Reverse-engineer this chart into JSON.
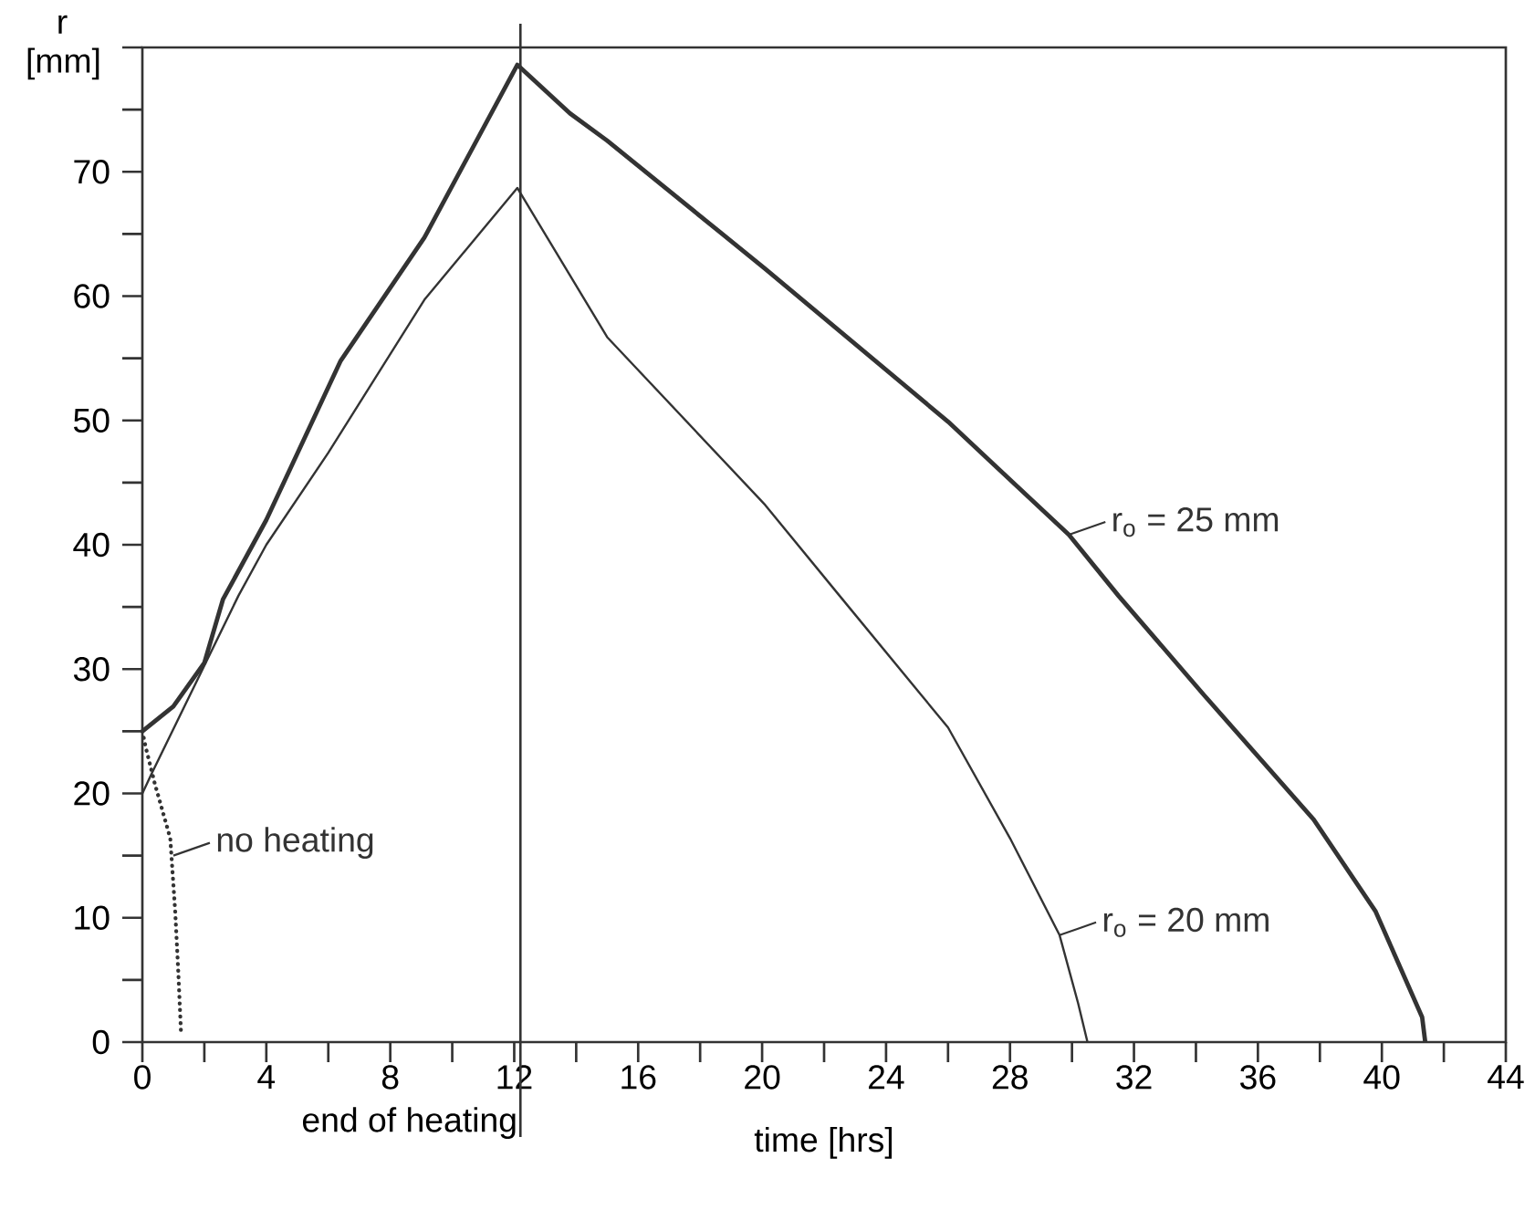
{
  "chart_data": {
    "type": "line",
    "xlabel": "time [hrs]",
    "ylabel": "r [mm]",
    "xlim": [
      0,
      44
    ],
    "ylim": [
      0,
      80
    ],
    "xticks": [
      0,
      {
        "value": 2,
        "label": null
      },
      4,
      {
        "value": 6,
        "label": null
      },
      8,
      {
        "value": 10,
        "label": null
      },
      12,
      {
        "value": 14,
        "label": null
      },
      16,
      {
        "value": 18,
        "label": null
      },
      20,
      {
        "value": 22,
        "label": null
      },
      24,
      {
        "value": 26,
        "label": null
      },
      28,
      {
        "value": 30,
        "label": null
      },
      32,
      {
        "value": 34,
        "label": null
      },
      36,
      {
        "value": 38,
        "label": null
      },
      40,
      {
        "value": 42,
        "label": null
      },
      44
    ],
    "yticks": [
      0,
      {
        "value": 5,
        "label": null
      },
      10,
      {
        "value": 15,
        "label": null
      },
      20,
      {
        "value": 25,
        "label": null
      },
      30,
      {
        "value": 35,
        "label": null
      },
      40,
      {
        "value": 45,
        "label": null
      },
      50,
      {
        "value": 55,
        "label": null
      },
      60,
      {
        "value": 65,
        "label": null
      },
      70,
      {
        "value": 75,
        "label": null
      },
      {
        "value": 80,
        "label": null
      }
    ],
    "series": [
      {
        "color": "#333333",
        "line_style": "solid",
        "x": [
          0,
          1,
          2,
          2.6,
          4,
          6.4,
          9.1,
          12.1,
          13.8,
          15.0,
          20.1,
          26.0,
          29.9,
          31.5,
          34.3,
          37.8,
          39.8,
          41.3,
          41.4
        ],
        "values": [
          25,
          27,
          30.5,
          35.6,
          42,
          54.8,
          64.7,
          78.6,
          74.7,
          72.5,
          62.2,
          49.9,
          40.8,
          35.9,
          27.8,
          17.9,
          10.5,
          2,
          0
        ]
      },
      {
        "color": "#333333",
        "line_style": "solid",
        "x": [
          0,
          0.3,
          3.1,
          4.0,
          6.0,
          9.1,
          12.1,
          15.0,
          20.1,
          22.5,
          26.0,
          28.0,
          29.6,
          30.2,
          30.5
        ],
        "values": [
          20,
          21.6,
          35.9,
          40,
          47.4,
          59.7,
          68.7,
          56.7,
          43.2,
          35.9,
          25.3,
          16.4,
          8.6,
          3.1,
          0
        ]
      },
      {
        "color": "#333333",
        "line_style": "dotted",
        "x": [
          0,
          0.1,
          0.4,
          0.9,
          1.06,
          1.16,
          1.25
        ],
        "values": [
          25,
          23.8,
          20.8,
          16.4,
          10.5,
          5.6,
          0.6
        ]
      }
    ],
    "ref_lines": [
      {
        "axis": "x",
        "value": 12.2,
        "label": "end of heating"
      }
    ],
    "annotations": [
      {
        "text": "no heating",
        "x": 1.0,
        "y": 15
      },
      {
        "text": "r$_{o}$ = 25 mm",
        "x": 29.9,
        "y": 40.8
      },
      {
        "text": "r$_{o}$ = 20 mm",
        "x": 29.6,
        "y": 8.6
      }
    ]
  }
}
